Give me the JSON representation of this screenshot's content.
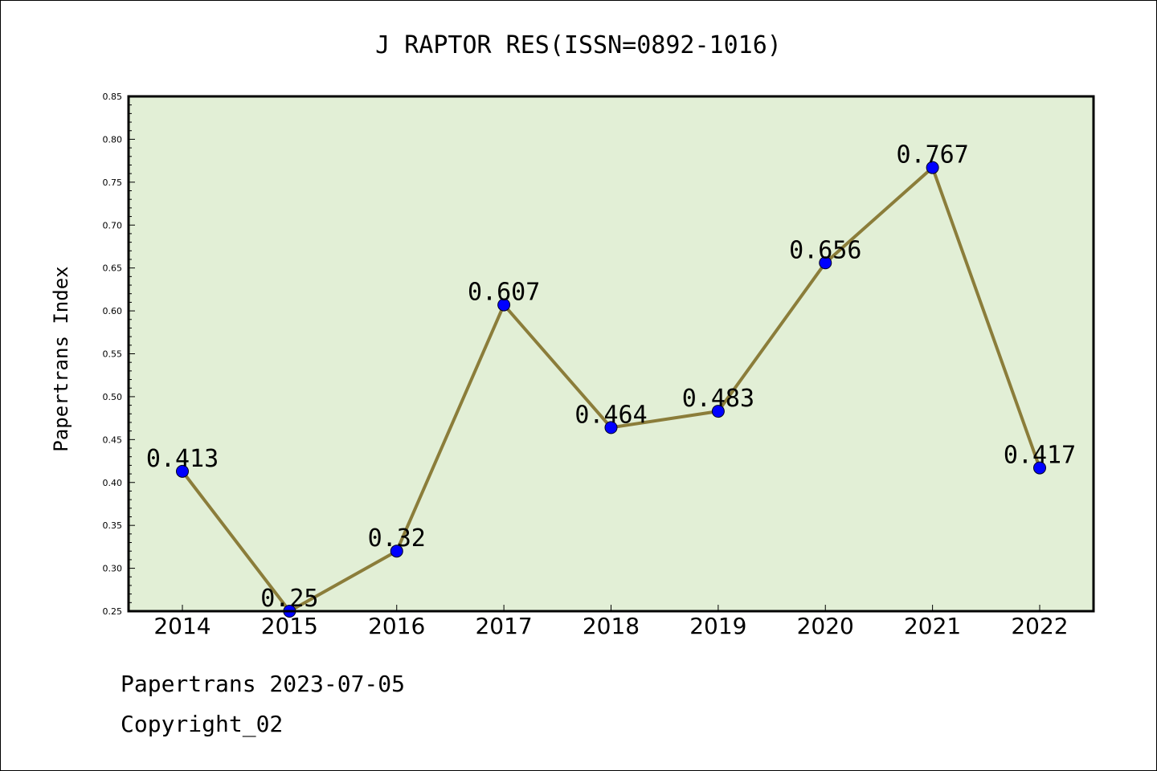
{
  "chart_data": {
    "type": "line",
    "title": "J RAPTOR RES(ISSN=0892-1016)",
    "xlabel": "",
    "ylabel": "Papertrans Index",
    "categories": [
      "2014",
      "2015",
      "2016",
      "2017",
      "2018",
      "2019",
      "2020",
      "2021",
      "2022"
    ],
    "series": [
      {
        "values": [
          0.413,
          0.25,
          0.32,
          0.607,
          0.464,
          0.483,
          0.656,
          0.767,
          0.417
        ]
      }
    ],
    "data_labels": [
      "0.413",
      "0.25",
      "0.32",
      "0.607",
      "0.464",
      "0.483",
      "0.656",
      "0.767",
      "0.417"
    ],
    "ylim": [
      0.25,
      0.85
    ],
    "yticks": [
      "0.25",
      "0.30",
      "0.35",
      "0.40",
      "0.45",
      "0.50",
      "0.55",
      "0.60",
      "0.65",
      "0.70",
      "0.75",
      "0.80",
      "0.85"
    ],
    "grid": false,
    "colors": {
      "plot_background": "#e2efd6",
      "line": "#8b7d3a",
      "marker": "#0000ff"
    }
  },
  "footer": {
    "line1": "Papertrans 2023-07-05",
    "line2": "Copyright_02"
  }
}
